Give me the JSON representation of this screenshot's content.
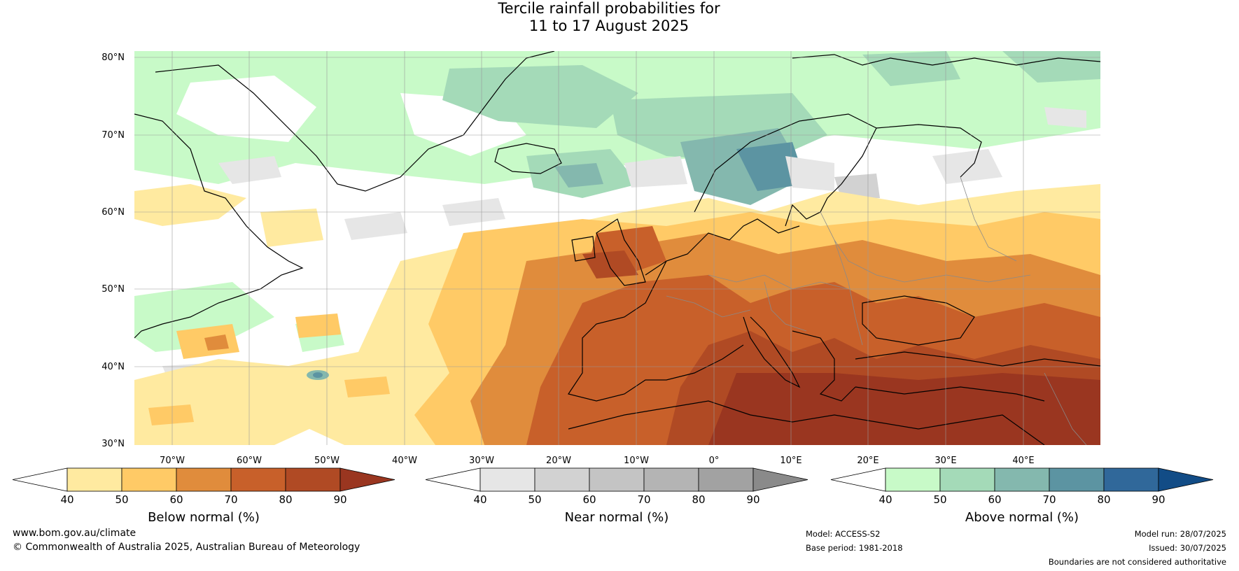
{
  "title": {
    "line1": "Tercile rainfall probabilities for",
    "line2": "11 to 17 August 2025"
  },
  "map": {
    "lat_labels": [
      "80°N",
      "70°N",
      "60°N",
      "50°N",
      "40°N",
      "30°N"
    ],
    "lon_labels": [
      "70°W",
      "60°W",
      "50°W",
      "40°W",
      "30°W",
      "20°W",
      "10°W",
      "0°",
      "10°E",
      "20°E",
      "30°E",
      "40°E"
    ],
    "colors": {
      "ocean_bg": "#ffffff",
      "coastline": "#000000",
      "borders": "#8a8a8a",
      "grid": "#9a9a9a"
    }
  },
  "colorbars": [
    {
      "label": "Below normal (%)",
      "ticks": [
        "40",
        "50",
        "60",
        "70",
        "80",
        "90"
      ],
      "colors": [
        "#ffffff",
        "#ffeaa0",
        "#ffca66",
        "#e08c3c",
        "#c8602a",
        "#b04a24",
        "#9a3620"
      ]
    },
    {
      "label": "Near normal (%)",
      "ticks": [
        "40",
        "50",
        "60",
        "70",
        "80",
        "90"
      ],
      "colors": [
        "#ffffff",
        "#e6e6e6",
        "#d2d2d2",
        "#c4c4c4",
        "#b4b4b4",
        "#a2a2a2",
        "#8a8a8a"
      ]
    },
    {
      "label": "Above normal (%)",
      "ticks": [
        "40",
        "50",
        "60",
        "70",
        "80",
        "90"
      ],
      "colors": [
        "#ffffff",
        "#c8fac8",
        "#a4dab8",
        "#84b8ae",
        "#5c94a2",
        "#30689a",
        "#124c86"
      ]
    }
  ],
  "footer": {
    "url": "www.bom.gov.au/climate",
    "copyright": "© Commonwealth of Australia 2025, Australian Bureau of Meteorology",
    "model": "Model: ACCESS-S2",
    "base_period": "Base period: 1981-2018",
    "model_run": "Model run: 28/07/2025",
    "issued": "Issued: 30/07/2025",
    "disclaimer": "Boundaries are not considered authoritative"
  }
}
